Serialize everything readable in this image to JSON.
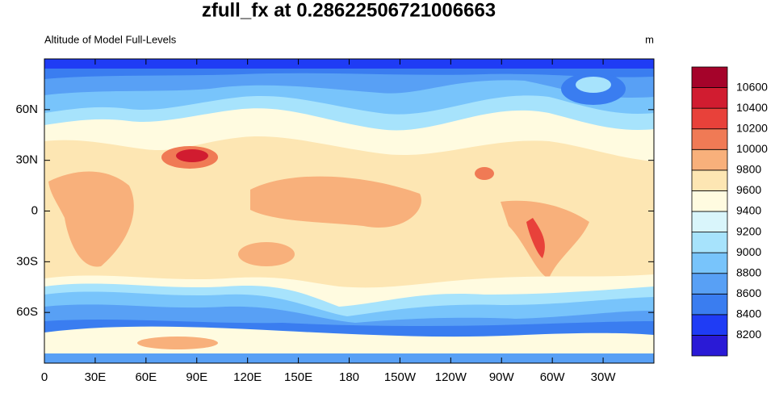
{
  "title": "zfull_fx at 0.28622506721006663",
  "map": {
    "subtitle": "Altitude of Model Full-Levels",
    "units": "m",
    "xlim": [
      0,
      360
    ],
    "ylim": [
      -90,
      90
    ],
    "xticks": [
      0,
      {
        "value": 30,
        "label": "30E"
      },
      {
        "value": 60,
        "label": "60E"
      },
      {
        "value": 90,
        "label": "90E"
      },
      {
        "value": 120,
        "label": "120E"
      },
      {
        "value": 150,
        "label": "150E"
      },
      180,
      {
        "value": 210,
        "label": "150W"
      },
      {
        "value": 240,
        "label": "120W"
      },
      {
        "value": 270,
        "label": "90W"
      },
      {
        "value": 300,
        "label": "60W"
      },
      {
        "value": 330,
        "label": "30W"
      }
    ],
    "yticks": [
      {
        "value": 60,
        "label": "60N"
      },
      {
        "value": 30,
        "label": "30N"
      },
      0,
      {
        "value": -30,
        "label": "30S"
      },
      {
        "value": -60,
        "label": "60S"
      }
    ]
  },
  "colorbar": {
    "levels": [
      8200,
      8400,
      8600,
      8800,
      9000,
      9200,
      9400,
      9600,
      9800,
      10000,
      10200,
      10400,
      10600
    ],
    "colors": [
      "#2a1ad6",
      "#1f3cf5",
      "#3a7df0",
      "#58a0f5",
      "#78c4fb",
      "#a7e3fc",
      "#d9f5fb",
      "#fffbe0",
      "#fde6b3",
      "#f8b07b",
      "#f07a55",
      "#e8413a",
      "#d11c30",
      "#a5032a"
    ]
  }
}
